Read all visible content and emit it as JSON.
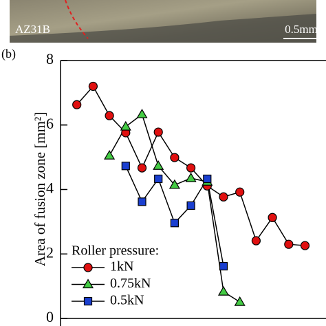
{
  "micrograph": {
    "labels": [
      "AZ31B",
      "0.5mm"
    ]
  },
  "chart_data": {
    "type": "line",
    "panel_label": "(b)",
    "ylabel": "Area of fusion zone [mm²]",
    "legend_title": "Roller pressure:",
    "categories": [
      null,
      null,
      null,
      null,
      null,
      null,
      null,
      null,
      null,
      null,
      null,
      null,
      null,
      null,
      null
    ],
    "ylim": [
      0,
      8
    ],
    "yticks": [
      0,
      2,
      4,
      6,
      8
    ],
    "series": [
      {
        "name": "1kN",
        "color": "#e01010",
        "marker": "circle",
        "values": [
          6.63,
          7.2,
          6.29,
          5.76,
          4.67,
          5.78,
          4.99,
          4.67,
          4.11,
          3.77,
          3.92,
          2.41,
          3.13,
          2.3,
          2.26
        ]
      },
      {
        "name": "0.75kN",
        "color": "#44cc44",
        "marker": "triangle",
        "values": [
          null,
          null,
          5.05,
          5.95,
          6.33,
          4.73,
          4.14,
          4.35,
          4.24,
          0.83,
          0.51,
          null,
          null,
          null,
          null
        ]
      },
      {
        "name": "0.5kN",
        "color": "#1a3fd0",
        "marker": "square",
        "values": [
          null,
          null,
          null,
          4.73,
          3.62,
          4.33,
          2.96,
          3.5,
          4.33,
          1.62,
          null,
          null,
          null,
          null,
          null
        ]
      }
    ]
  }
}
